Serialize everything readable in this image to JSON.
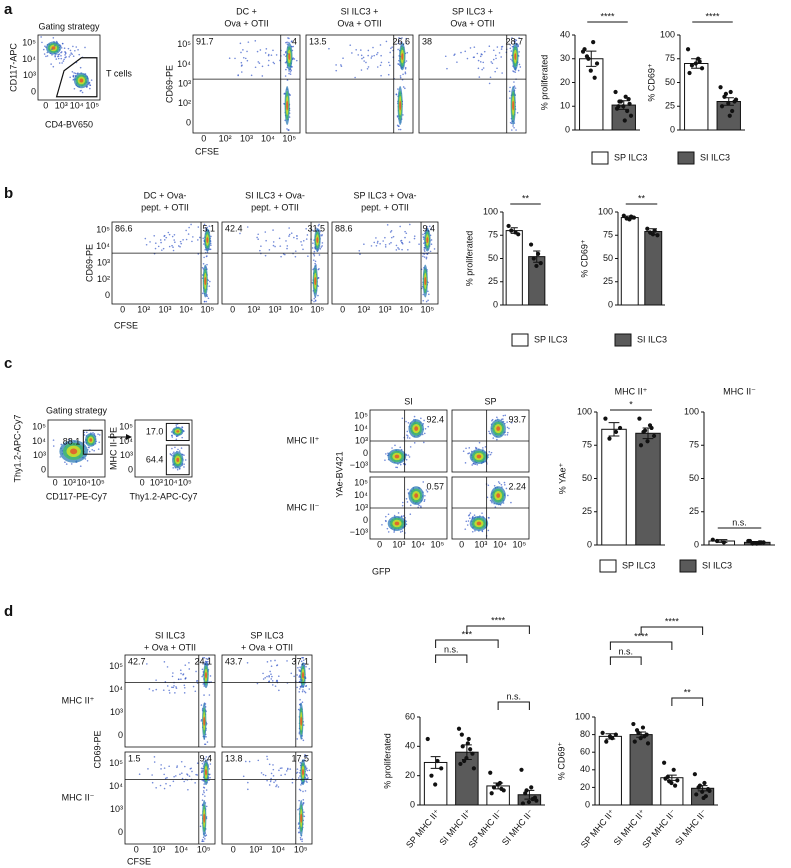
{
  "panel_letters": [
    "a",
    "b",
    "c",
    "d"
  ],
  "legend": [
    {
      "name": "SP ILC3",
      "color": "#ffffff"
    },
    {
      "name": "SI ILC3",
      "color": "#5a5a5a"
    }
  ],
  "flow_groups": [
    {
      "title": "Gating strategy",
      "xlabel": "CD4-BV650",
      "ylabel": "CD117-APC",
      "xticks": [
        "0",
        "10³",
        "10⁴",
        "10⁵"
      ],
      "yticks": [
        "0",
        "10³",
        "10⁴",
        "10⁵"
      ],
      "plots": [
        [
          "T cells"
        ]
      ]
    },
    {
      "xlabel": "CFSE",
      "ylabel": "CD69-PE",
      "col_titles": [
        [
          "DC +",
          "Ova + OTII"
        ],
        [
          "SI ILC3 +",
          "Ova + OTII"
        ],
        [
          "SP ILC3 +",
          "Ova + OTII"
        ]
      ],
      "xticks": [
        "0",
        "10²",
        "10³",
        "10⁴",
        "10⁵"
      ],
      "yticks": [
        "0",
        "10²",
        "10³",
        "10⁴",
        "10⁵"
      ],
      "plots": [
        [
          "91.7",
          "4"
        ],
        [
          "13.5",
          "26.6"
        ],
        [
          "38",
          "28.7"
        ]
      ]
    },
    {
      "xlabel": "CFSE",
      "ylabel": "CD69-PE",
      "col_titles": [
        [
          "DC + Ova-",
          "pept. + OTII"
        ],
        [
          "SI ILC3 + Ova-",
          "pept. + OTII"
        ],
        [
          "SP ILC3 + Ova-",
          "pept. + OTII"
        ]
      ],
      "xticks": [
        "0",
        "10²",
        "10³",
        "10⁴",
        "10⁵"
      ],
      "yticks": [
        "0",
        "10²",
        "10³",
        "10⁴",
        "10⁵"
      ],
      "plots": [
        [
          "86.6",
          "5.1"
        ],
        [
          "42.4",
          "31.5"
        ],
        [
          "88.6",
          "9.4"
        ]
      ]
    },
    {
      "title": "Gating strategy",
      "xlabel": "CD117-PE-Cy7",
      "ylabel": "Thy1.2-APC-Cy7",
      "xticks": [
        "0",
        "10³",
        "10⁴",
        "10⁵"
      ],
      "yticks": [
        "0",
        "10³",
        "10⁴",
        "10⁵"
      ],
      "plots": [
        [
          "88.1"
        ]
      ]
    },
    {
      "xlabel": "Thy1.2-APC-Cy7",
      "ylabel": "MHC II-PE",
      "xticks": [
        "0",
        "10³",
        "10⁴",
        "10⁵"
      ],
      "yticks": [
        "0",
        "10³",
        "10⁴",
        "10⁵"
      ],
      "plots": [
        [
          "17.0",
          "64.4"
        ]
      ]
    },
    {
      "xlabel": "GFP",
      "ylabel": "YAe-BV421",
      "col_titles": [
        [
          "SI"
        ],
        [
          "SP"
        ]
      ],
      "row_labels": [
        "MHC II⁺",
        "MHC II⁻"
      ],
      "xticks": [
        "0",
        "10³",
        "10⁴",
        "10⁵"
      ],
      "yticks": [
        "−10³",
        "0",
        "10³",
        "10⁴",
        "10⁵"
      ],
      "plots": [
        [
          "92.4"
        ],
        [
          "93.7"
        ],
        [
          "0.57"
        ],
        [
          "2.24"
        ]
      ]
    },
    {
      "xlabel": "CFSE",
      "ylabel": "CD69-PE",
      "col_titles": [
        [
          "SI ILC3",
          "+ Ova + OTII"
        ],
        [
          "SP ILC3",
          "+ Ova + OTII"
        ]
      ],
      "row_labels": [
        "MHC II⁺",
        "MHC II⁻"
      ],
      "xticks": [
        "0",
        "10³",
        "10⁴",
        "10⁵"
      ],
      "yticks": [
        "0",
        "10³",
        "10⁴",
        "10⁵"
      ],
      "plots": [
        [
          "42.7",
          "24.1"
        ],
        [
          "43.7",
          "37.1"
        ],
        [
          "1.5",
          "9.4"
        ],
        [
          "13.8",
          "17.5"
        ]
      ]
    }
  ],
  "chart_data": [
    {
      "type": "bar",
      "ylabel": "% proliferated",
      "ylim": [
        0,
        40
      ],
      "yticks": [
        0,
        10,
        20,
        30,
        40
      ],
      "values": [
        30,
        10.5
      ],
      "errors": [
        3.2,
        1.8
      ],
      "colors": [
        "#ffffff",
        "#5a5a5a"
      ],
      "points": [
        [
          33,
          37,
          31,
          28,
          25,
          34,
          22,
          30
        ],
        [
          16,
          14,
          12,
          11,
          10,
          9,
          8,
          12,
          6,
          4,
          10,
          13
        ]
      ],
      "comparisons": [
        {
          "pair": [
            0,
            1
          ],
          "label": "****"
        }
      ]
    },
    {
      "type": "bar",
      "ylabel": "% CD69⁺",
      "ylim": [
        0,
        100
      ],
      "yticks": [
        0,
        25,
        50,
        75,
        100
      ],
      "values": [
        70,
        30
      ],
      "errors": [
        5,
        4
      ],
      "colors": [
        "#ffffff",
        "#5a5a5a"
      ],
      "points": [
        [
          85,
          75,
          68,
          65,
          70,
          60,
          72
        ],
        [
          45,
          40,
          35,
          30,
          28,
          25,
          20,
          38,
          32,
          15
        ]
      ],
      "comparisons": [
        {
          "pair": [
            0,
            1
          ],
          "label": "****"
        }
      ]
    },
    {
      "type": "bar",
      "ylabel": "% proliferated",
      "ylim": [
        0,
        100
      ],
      "yticks": [
        0,
        25,
        50,
        75,
        100
      ],
      "values": [
        80,
        52
      ],
      "errors": [
        3,
        6
      ],
      "colors": [
        "#ffffff",
        "#5a5a5a"
      ],
      "points": [
        [
          85,
          78,
          80,
          76
        ],
        [
          65,
          55,
          50,
          45,
          42
        ]
      ],
      "comparisons": [
        {
          "pair": [
            0,
            1
          ],
          "label": "**"
        }
      ]
    },
    {
      "type": "bar",
      "ylabel": "% CD69⁺",
      "ylim": [
        0,
        100
      ],
      "yticks": [
        0,
        25,
        50,
        75,
        100
      ],
      "values": [
        94,
        79
      ],
      "errors": [
        1.5,
        3
      ],
      "colors": [
        "#ffffff",
        "#5a5a5a"
      ],
      "points": [
        [
          96,
          95,
          93,
          94,
          92
        ],
        [
          82,
          80,
          78,
          75,
          76
        ]
      ],
      "comparisons": [
        {
          "pair": [
            0,
            1
          ],
          "label": "**"
        }
      ]
    },
    {
      "type": "bar",
      "title": "MHC II⁺",
      "ylabel": "% YAe⁺",
      "ylim": [
        0,
        100
      ],
      "yticks": [
        0,
        25,
        50,
        75,
        100
      ],
      "values": [
        87,
        84
      ],
      "errors": [
        5,
        4
      ],
      "colors": [
        "#ffffff",
        "#5a5a5a"
      ],
      "points": [
        [
          95,
          85,
          80,
          88
        ],
        [
          95,
          90,
          85,
          82,
          78,
          75,
          88,
          86
        ]
      ],
      "comparisons": [
        {
          "pair": [
            0,
            1
          ],
          "label": "*"
        }
      ]
    },
    {
      "type": "bar",
      "title": "MHC II⁻",
      "ylim": [
        0,
        100
      ],
      "yticks": [
        0,
        25,
        50,
        75,
        100
      ],
      "values": [
        3,
        2
      ],
      "errors": [
        1,
        0.6
      ],
      "colors": [
        "#ffffff",
        "#5a5a5a"
      ],
      "points": [
        [
          4,
          2,
          3
        ],
        [
          3,
          2,
          1,
          2,
          1,
          3,
          2
        ]
      ],
      "comparisons": [
        {
          "pair": [
            0,
            1
          ],
          "label": "n.s."
        }
      ]
    },
    {
      "type": "bar",
      "ylabel": "% proliferated",
      "ylim": [
        0,
        60
      ],
      "yticks": [
        0,
        20,
        40,
        60
      ],
      "categories": [
        "SP MHC II⁺",
        "SI MHC II⁺",
        "SP MHC II⁻",
        "SI MHC II⁻"
      ],
      "values": [
        29,
        36,
        13,
        7
      ],
      "errors": [
        4,
        5,
        2,
        3
      ],
      "colors": [
        "#ffffff",
        "#5a5a5a",
        "#ffffff",
        "#5a5a5a"
      ],
      "points": [
        [
          45,
          30,
          20,
          25,
          14
        ],
        [
          52,
          45,
          40,
          35,
          32,
          28,
          38,
          30,
          25,
          42,
          48
        ],
        [
          22,
          15,
          12,
          10,
          14,
          8,
          11
        ],
        [
          24,
          12,
          8,
          5,
          2,
          1,
          4,
          10,
          3
        ]
      ],
      "comparisons": [
        {
          "pair": [
            0,
            1
          ],
          "label": "n.s."
        },
        {
          "pair": [
            0,
            2
          ],
          "label": "***"
        },
        {
          "pair": [
            1,
            3
          ],
          "label": "****"
        },
        {
          "pair": [
            2,
            3
          ],
          "label": "n.s."
        }
      ]
    },
    {
      "type": "bar",
      "ylabel": "% CD69⁺",
      "ylim": [
        0,
        100
      ],
      "yticks": [
        0,
        20,
        40,
        60,
        80,
        100
      ],
      "categories": [
        "SP MHC II⁺",
        "SI MHC II⁺",
        "SP MHC II⁻",
        "SI MHC II⁻"
      ],
      "values": [
        78,
        80,
        31,
        19
      ],
      "errors": [
        3,
        3,
        3,
        3
      ],
      "colors": [
        "#ffffff",
        "#5a5a5a",
        "#ffffff",
        "#5a5a5a"
      ],
      "points": [
        [
          82,
          76,
          72,
          80,
          78
        ],
        [
          92,
          88,
          85,
          80,
          76,
          72,
          78,
          82,
          70
        ],
        [
          48,
          40,
          32,
          28,
          25,
          30,
          22,
          27
        ],
        [
          35,
          25,
          20,
          18,
          15,
          12,
          10,
          22,
          16,
          8
        ]
      ],
      "comparisons": [
        {
          "pair": [
            0,
            1
          ],
          "label": "n.s."
        },
        {
          "pair": [
            0,
            2
          ],
          "label": "****"
        },
        {
          "pair": [
            1,
            3
          ],
          "label": "****"
        },
        {
          "pair": [
            2,
            3
          ],
          "label": "**"
        }
      ]
    }
  ]
}
